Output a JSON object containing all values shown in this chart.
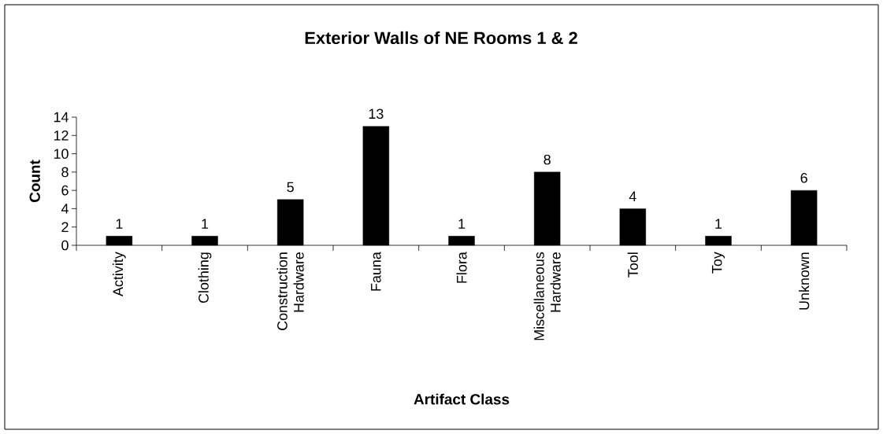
{
  "chart_data": {
    "type": "bar",
    "title": "Exterior Walls of NE Rooms 1 & 2",
    "xlabel": "Artifact Class",
    "ylabel": "Count",
    "categories": [
      "Activity",
      "Clothing",
      "Construction Hardware",
      "Fauna",
      "Flora",
      "Miscellaneous Hardware",
      "Tool",
      "Toy",
      "Unknown"
    ],
    "values": [
      1,
      1,
      5,
      13,
      1,
      8,
      4,
      1,
      6
    ],
    "color": "#000000",
    "ylim": [
      0,
      14
    ],
    "yticks": [
      0,
      2,
      4,
      6,
      8,
      10,
      12,
      14
    ],
    "data_labels": true
  }
}
